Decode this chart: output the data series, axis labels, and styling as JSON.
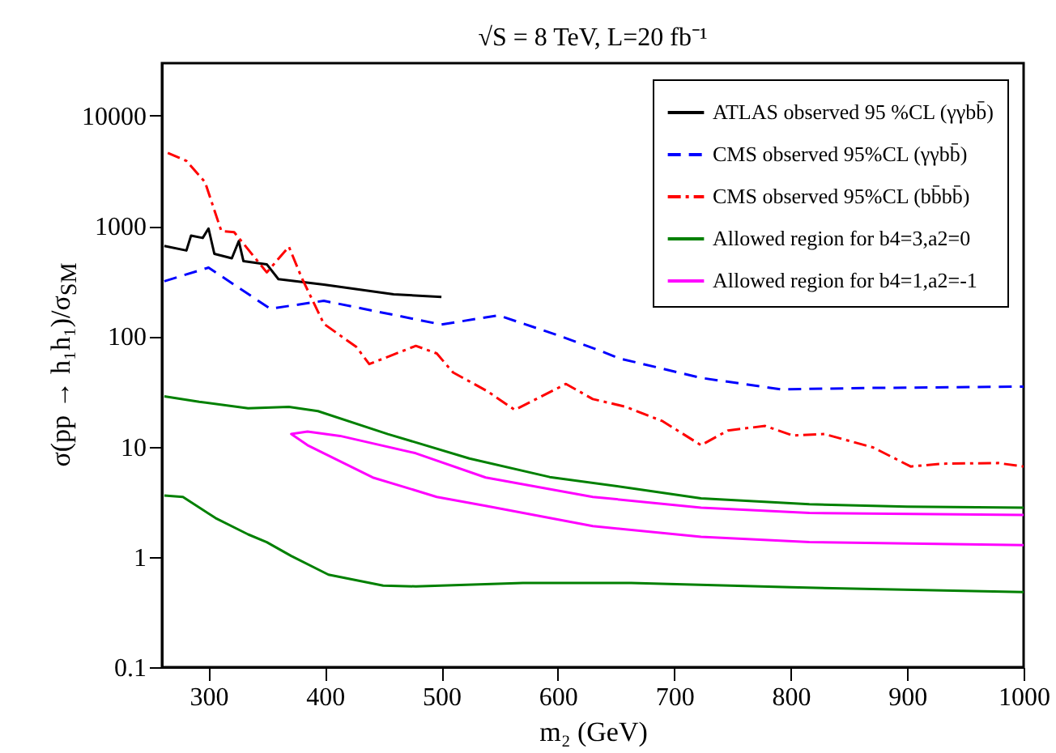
{
  "chart_data": {
    "type": "line",
    "title": "√S = 8 TeV, L=20 fb⁻¹",
    "xlabel": "m₂ (GeV)",
    "ylabel": "σ(pp → h₁h₁)/σ$_{SM}$",
    "log": "y",
    "grid": false,
    "legend": "top right",
    "xlim": [
      260,
      1000
    ],
    "xticks": [
      300,
      400,
      500,
      600,
      700,
      800,
      900,
      1000
    ],
    "ylim": [
      0.1,
      30000
    ],
    "yticks": [
      0.1,
      1,
      10,
      100,
      1000,
      10000
    ],
    "series": [
      {
        "name": "ATLAS observed 95 %CL (γγbb̄)",
        "color": "#000000",
        "line_style": "solid",
        "x": [
          262,
          281,
          285,
          295,
          300,
          305,
          320,
          326,
          330,
          350,
          360,
          399,
          459,
          500
        ],
        "values": [
          660,
          600,
          820,
          780,
          950,
          560,
          510,
          730,
          480,
          450,
          330,
          295,
          240,
          228
        ]
      },
      {
        "name": "CMS observed 95%CL (γγbb̄)",
        "color": "#0000ff",
        "line_style": "dashed",
        "x": [
          262,
          300,
          353,
          399,
          500,
          549,
          598,
          635,
          653,
          723,
          792,
          862,
          1000
        ],
        "values": [
          316,
          420,
          178,
          210,
          128,
          155,
          104,
          75,
          63,
          42,
          33,
          34,
          35
        ]
      },
      {
        "name": "CMS observed 95%CL (bb̄bb̄)",
        "color": "#ff0000",
        "line_style": "dashdot",
        "x": [
          265,
          281,
          297,
          311,
          322,
          350,
          369,
          380,
          399,
          427,
          438,
          478,
          496,
          510,
          539,
          563,
          607,
          630,
          658,
          690,
          723,
          746,
          778,
          802,
          829,
          871,
          903,
          930,
          978,
          1000
        ],
        "values": [
          4600,
          3900,
          2500,
          900,
          880,
          380,
          650,
          340,
          130,
          80,
          56,
          82,
          70,
          47,
          32,
          21.5,
          37,
          27,
          23,
          17,
          10.3,
          14,
          15.4,
          12.6,
          13,
          9.8,
          6.6,
          7,
          7.1,
          6.6
        ]
      },
      {
        "name": "Allowed region for b4=3,a2=0",
        "color": "#008000",
        "line_style": "solid",
        "x": [
          262,
          292,
          334,
          369,
          394,
          454,
          524,
          593,
          663,
          723,
          816,
          900,
          1000
        ],
        "values": [
          28.6,
          25.5,
          22.3,
          22.9,
          21,
          13,
          7.8,
          5.3,
          4.2,
          3.4,
          3.0,
          2.85,
          2.8
        ]
      },
      {
        "color": "#008000",
        "line_style": "solid",
        "x": [
          262,
          278,
          306,
          334,
          350,
          371,
          403,
          450,
          478,
          570,
          663,
          800,
          1000
        ],
        "values": [
          3.6,
          3.5,
          2.25,
          1.6,
          1.36,
          1.02,
          0.69,
          0.55,
          0.54,
          0.58,
          0.58,
          0.53,
          0.48
        ]
      },
      {
        "name": "Allowed region for b4=1,a2=-1",
        "color": "#ff00ff",
        "line_style": "solid",
        "x": [
          1000,
          816,
          723,
          630,
          538,
          478,
          413,
          385,
          371,
          385,
          441,
          496,
          538,
          630,
          723,
          816,
          1000
        ],
        "values": [
          2.4,
          2.5,
          2.8,
          3.5,
          5.25,
          8.7,
          12.5,
          13.7,
          13,
          10.3,
          5.25,
          3.5,
          2.9,
          1.9,
          1.52,
          1.36,
          1.28
        ]
      }
    ]
  }
}
